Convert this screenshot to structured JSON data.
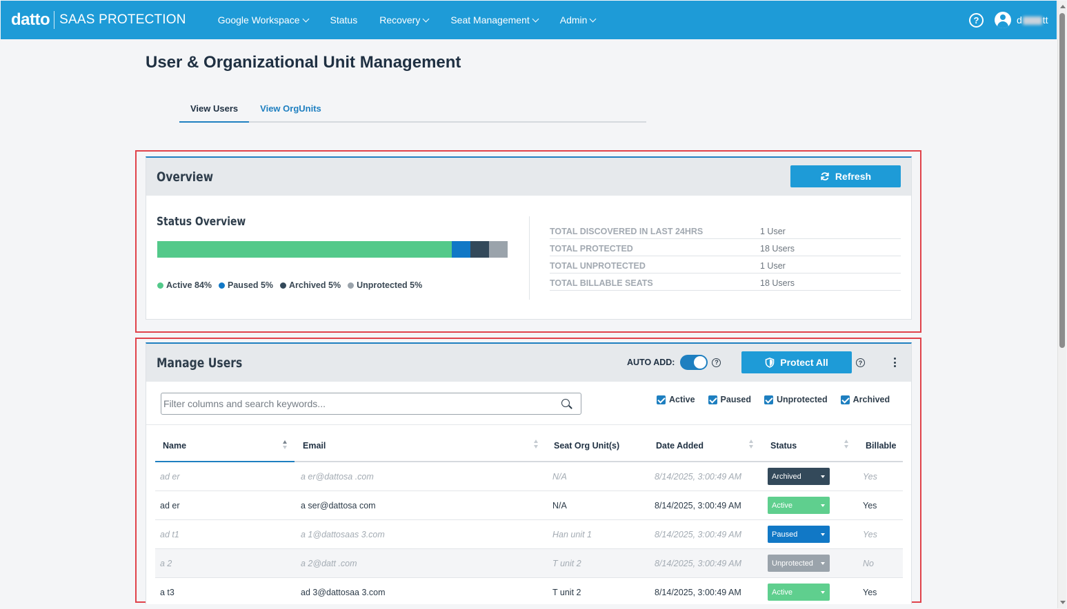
{
  "app": {
    "logo": "datto",
    "product": "SAAS PROTECTION",
    "user_initial": "d",
    "user_suffix": "tt"
  },
  "nav": [
    {
      "label": "Google Workspace",
      "dropdown": true
    },
    {
      "label": "Status",
      "dropdown": false
    },
    {
      "label": "Recovery",
      "dropdown": true
    },
    {
      "label": "Seat Management",
      "dropdown": true
    },
    {
      "label": "Admin",
      "dropdown": true
    }
  ],
  "page": {
    "title": "User & Organizational Unit Management",
    "tabs": [
      {
        "label": "View Users",
        "active": true
      },
      {
        "label": "View OrgUnits",
        "active": false
      }
    ]
  },
  "overview": {
    "title": "Overview",
    "refresh_label": "Refresh",
    "status_title": "Status Overview",
    "segments": [
      {
        "label": "Active 84%",
        "pct": 84,
        "color": "#53c98a"
      },
      {
        "label": "Paused 5%",
        "pct": 5.3,
        "color": "#1178c6"
      },
      {
        "label": "Archived 5%",
        "pct": 5.3,
        "color": "#33495a"
      },
      {
        "label": "Unprotected 5%",
        "pct": 5.4,
        "color": "#9aa3ab"
      }
    ],
    "stats": [
      {
        "label": "TOTAL DISCOVERED IN LAST 24HRS",
        "value": "1 User"
      },
      {
        "label": "TOTAL PROTECTED",
        "value": "18 Users"
      },
      {
        "label": "TOTAL UNPROTECTED",
        "value": "1 User"
      },
      {
        "label": "TOTAL BILLABLE SEATS",
        "value": "18 Users"
      }
    ]
  },
  "manage": {
    "title": "Manage Users",
    "auto_add_label": "AUTO ADD:",
    "protect_all_label": "Protect All",
    "search_placeholder": "Filter columns and search keywords...",
    "filters": [
      "Active",
      "Paused",
      "Unprotected",
      "Archived"
    ],
    "columns": [
      "Name",
      "Email",
      "Seat Org Unit(s)",
      "Date Added",
      "Status",
      "Billable"
    ],
    "rows": [
      {
        "name": "ad  er",
        "email": "a  er@dattosa  .com",
        "org": "N/A",
        "date": "8/14/2025, 3:00:49 AM",
        "status": "Archived",
        "billable": "Yes",
        "dim": true,
        "shade": false
      },
      {
        "name": "ad  er",
        "email": "a  ser@dattosa  com",
        "org": "N/A",
        "date": "8/14/2025, 3:00:49 AM",
        "status": "Active",
        "billable": "Yes",
        "dim": false,
        "shade": false
      },
      {
        "name": "ad  t1",
        "email": "a  1@dattosaas  3.com",
        "org": "Han  unit 1",
        "date": "8/14/2025, 3:00:49 AM",
        "status": "Paused",
        "billable": "Yes",
        "dim": true,
        "shade": false
      },
      {
        "name": "a  2",
        "email": "a  2@datt  .com",
        "org": "T  unit 2",
        "date": "8/14/2025, 3:00:49 AM",
        "status": "Unprotected",
        "billable": "No",
        "dim": true,
        "shade": true
      },
      {
        "name": "a  t3",
        "email": "ad  3@dattosaa  3.com",
        "org": "T  unit 2",
        "date": "8/14/2025, 3:00:49 AM",
        "status": "Active",
        "billable": "Yes",
        "dim": false,
        "shade": false
      }
    ]
  }
}
